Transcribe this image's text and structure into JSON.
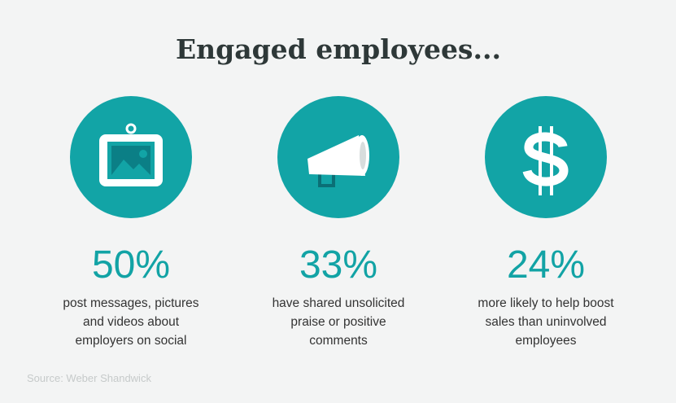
{
  "header": {
    "title": "Engaged employees..."
  },
  "stats": [
    {
      "value": "50%",
      "lines": [
        "post messages, pictures",
        "and videos about",
        "employers on social"
      ]
    },
    {
      "value": "33%",
      "lines": [
        "have shared unsolicited",
        "praise or positive",
        "comments"
      ]
    },
    {
      "value": "24%",
      "lines": [
        "more likely to help boost",
        "sales than uninvolved",
        "employees"
      ]
    }
  ],
  "footer": {
    "source": "Source: Weber Shandwick"
  }
}
